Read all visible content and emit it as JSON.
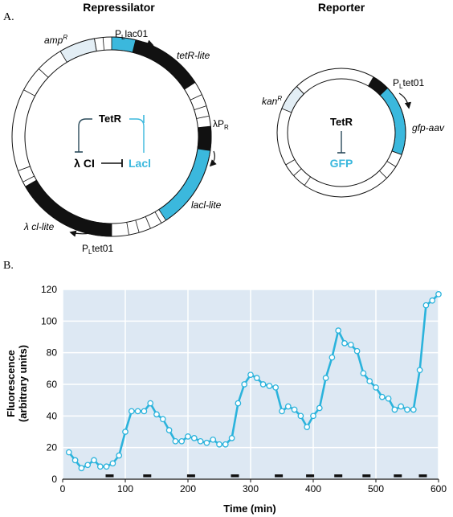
{
  "panel_a": {
    "letter": "A.",
    "repressilator": {
      "title": "Repressilator",
      "amp_label": "amp",
      "amp_sup": "R",
      "plac_label_p": "P",
      "plac_label_sub": "L",
      "plac_label_rest": "lac01",
      "tetr_lite": "tetR-lite",
      "lambda_pr_main": "λP",
      "lambda_pr_sub": "R",
      "lacl_lite": "lacl-lite",
      "lambda_ci_lite": "λ cl-lite",
      "ptet_label_p": "P",
      "ptet_label_sub": "L",
      "ptet_label_rest": "tet01",
      "node_tetr": "TetR",
      "node_lambda_ci": "λ CI",
      "node_laci": "Lacl"
    },
    "reporter": {
      "title": "Reporter",
      "kan_label": "kan",
      "kan_sup": "R",
      "ptet_label_p": "P",
      "ptet_label_sub": "L",
      "ptet_label_rest": "tet01",
      "gfp_aav": "gfp-aav",
      "node_tetr": "TetR",
      "node_gfp": "GFP"
    },
    "colors": {
      "cyan": "#3bb8dd",
      "light_blue": "#e3eef5",
      "dark": "#111111"
    }
  },
  "panel_b": {
    "letter": "B.",
    "chart_data": {
      "type": "line",
      "xlabel": "Time (min)",
      "ylabel": "Fluorescence (arbitrary units)",
      "ylabel_line1": "Fluorescence",
      "ylabel_line2": "(arbitrary units)",
      "xlim": [
        0,
        600
      ],
      "ylim": [
        0,
        120
      ],
      "xticks": [
        0,
        100,
        200,
        300,
        400,
        500,
        600
      ],
      "yticks": [
        0,
        20,
        40,
        60,
        80,
        100,
        120
      ],
      "grid": true,
      "background": "#dde8f3",
      "line_color": "#2bb3dc",
      "x": [
        10,
        20,
        30,
        40,
        50,
        60,
        70,
        80,
        90,
        100,
        110,
        120,
        130,
        140,
        150,
        160,
        170,
        180,
        190,
        200,
        210,
        220,
        230,
        240,
        250,
        260,
        270,
        280,
        290,
        300,
        310,
        320,
        330,
        340,
        350,
        360,
        370,
        380,
        390,
        400,
        410,
        420,
        430,
        440,
        450,
        460,
        470,
        480,
        490,
        500,
        510,
        520,
        530,
        540,
        550,
        560,
        570,
        580,
        590,
        600
      ],
      "y": [
        17,
        12,
        7,
        9,
        12,
        8,
        8,
        10,
        15,
        30,
        43,
        43,
        43,
        48,
        41,
        38,
        31,
        24,
        24,
        27,
        26,
        24,
        23,
        25,
        22,
        22,
        26,
        48,
        60,
        66,
        64,
        60,
        59,
        58,
        43,
        46,
        44,
        40,
        33,
        40,
        45,
        64,
        77,
        94,
        86,
        85,
        81,
        67,
        62,
        58,
        52,
        51,
        44,
        46,
        44,
        44,
        69,
        110,
        113,
        117
      ],
      "markers": [
        75,
        135,
        205,
        275,
        345,
        395,
        440,
        485,
        535,
        575
      ]
    }
  }
}
